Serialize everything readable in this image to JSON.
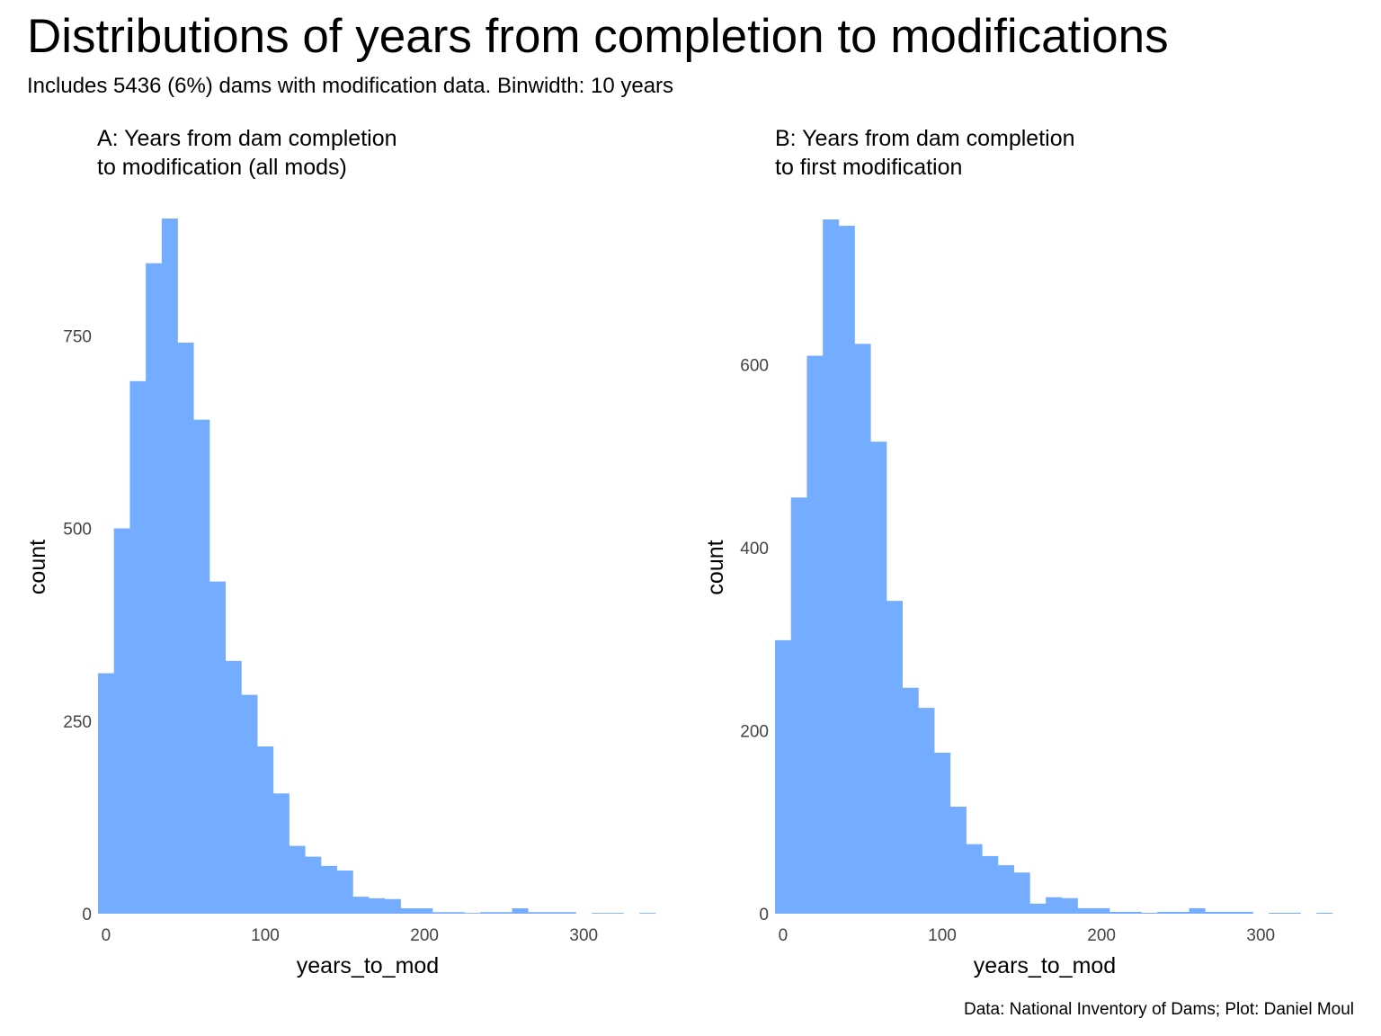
{
  "title": "Distributions of years from completion to modifications",
  "subtitle": "Includes 5436 (6%) dams with modification data. Binwidth: 10 years",
  "caption": "Data: National Inventory of Dams; Plot: Daniel Moul",
  "bar_color": "#74ADFF",
  "chart_data": [
    {
      "type": "bar",
      "title": "A: Years from dam completion\nto modification (all mods)",
      "xlabel": "years_to_mod",
      "ylabel": "count",
      "binwidth": 10,
      "bin_centers": [
        0,
        10,
        20,
        30,
        40,
        50,
        60,
        70,
        80,
        90,
        100,
        110,
        120,
        130,
        140,
        150,
        160,
        170,
        180,
        190,
        200,
        210,
        220,
        230,
        240,
        250,
        260,
        270,
        280,
        290,
        300,
        310,
        320,
        330,
        340
      ],
      "values": [
        312,
        500,
        691,
        844,
        902,
        741,
        641,
        431,
        328,
        284,
        217,
        156,
        88,
        74,
        62,
        56,
        22,
        20,
        19,
        7,
        7,
        2,
        2,
        1,
        2,
        2,
        7,
        2,
        2,
        2,
        0,
        1,
        1,
        0,
        1
      ],
      "xlim": [
        -5,
        345
      ],
      "ylim": [
        0,
        902
      ],
      "xticks": [
        0,
        100,
        200,
        300
      ],
      "yticks": [
        0,
        250,
        500,
        750
      ],
      "grid": false
    },
    {
      "type": "bar",
      "title": "B: Years from dam completion\nto first modification",
      "xlabel": "years_to_mod",
      "ylabel": "count",
      "binwidth": 10,
      "bin_centers": [
        0,
        10,
        20,
        30,
        40,
        50,
        60,
        70,
        80,
        90,
        100,
        110,
        120,
        130,
        140,
        150,
        160,
        170,
        180,
        190,
        200,
        210,
        220,
        230,
        240,
        250,
        260,
        270,
        280,
        290,
        300,
        310,
        320,
        330,
        340
      ],
      "values": [
        299,
        455,
        610,
        759,
        752,
        623,
        516,
        342,
        247,
        225,
        176,
        117,
        76,
        63,
        53,
        45,
        11,
        18,
        17,
        6,
        6,
        2,
        2,
        1,
        2,
        2,
        6,
        2,
        2,
        2,
        0,
        1,
        1,
        0,
        1
      ],
      "xlim": [
        -5,
        345
      ],
      "ylim": [
        0,
        759
      ],
      "xticks": [
        0,
        100,
        200,
        300
      ],
      "yticks": [
        0,
        200,
        400,
        600
      ],
      "grid": false
    }
  ]
}
